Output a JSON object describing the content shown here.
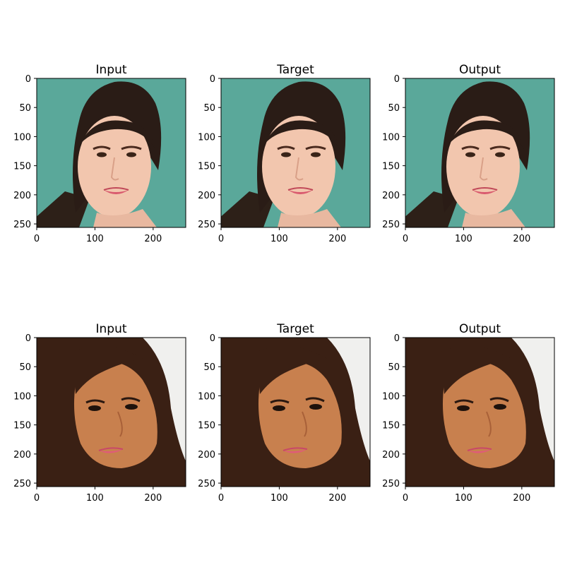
{
  "rows": [
    {
      "panels": [
        {
          "title": "Input",
          "image": "face-photo-woman-dark-hair-teal-background"
        },
        {
          "title": "Target",
          "image": "face-photo-woman-dark-hair-teal-background"
        },
        {
          "title": "Output",
          "image": "face-photo-woman-dark-hair-green-background-generated"
        }
      ]
    },
    {
      "panels": [
        {
          "title": "Input",
          "image": "face-photo-woman-long-brown-hair-white-background"
        },
        {
          "title": "Target",
          "image": "face-photo-woman-long-brown-hair-white-background"
        },
        {
          "title": "Output",
          "image": "face-photo-woman-long-brown-hair-white-background-generated"
        }
      ]
    }
  ],
  "axes": {
    "x_ticks": [
      "0",
      "100",
      "200"
    ],
    "y_ticks": [
      "0",
      "50",
      "100",
      "150",
      "200",
      "250"
    ],
    "xlim": [
      0,
      256
    ],
    "ylim": [
      256,
      0
    ]
  },
  "colors": {
    "teal_background": "#5aa89a",
    "green_background": "#4fc79f",
    "white_background": "#f0f0ee",
    "dark_hair": "#2a1c16",
    "brown_hair": "#3a2014",
    "skin_light": "#f2c6ae",
    "skin_tan": "#c8804e",
    "lips": "#d95a6e"
  }
}
